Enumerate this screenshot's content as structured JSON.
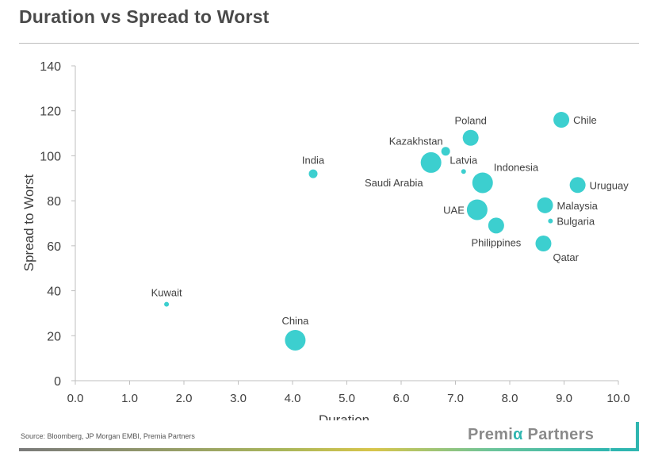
{
  "header": {
    "title": "Duration vs Spread to Worst"
  },
  "footer": {
    "source": "Source: Bloomberg, JP Morgan EMBI, Premia Partners",
    "brand_prefix": "Premi",
    "brand_alpha": "α",
    "brand_suffix": " Partners"
  },
  "colors": {
    "bubble": "#3ccfcf",
    "axis": "#bfbfbf",
    "text": "#404040",
    "brand_teal": "#2fb6b0"
  },
  "chart_data": {
    "type": "scatter",
    "title": "Duration vs Spread to Worst",
    "xlabel": "Duration",
    "ylabel": "Spread to Worst",
    "xlim": [
      0,
      10
    ],
    "ylim": [
      0,
      140
    ],
    "xticks": [
      "0.0",
      "1.0",
      "2.0",
      "3.0",
      "4.0",
      "5.0",
      "6.0",
      "7.0",
      "8.0",
      "9.0",
      "10.0"
    ],
    "yticks": [
      "0",
      "20",
      "40",
      "60",
      "80",
      "100",
      "120",
      "140"
    ],
    "grid": false,
    "points": [
      {
        "label": "Chile",
        "x": 8.95,
        "y": 116,
        "size": "medium",
        "label_pos": "right"
      },
      {
        "label": "Poland",
        "x": 7.28,
        "y": 108,
        "size": "medium",
        "label_pos": "top"
      },
      {
        "label": "Kazakhstan",
        "x": 6.82,
        "y": 102,
        "size": "small",
        "label_pos": "top-left"
      },
      {
        "label": "Saudi Arabia",
        "x": 6.55,
        "y": 97,
        "size": "large",
        "label_pos": "bottom-left"
      },
      {
        "label": "India",
        "x": 4.38,
        "y": 92,
        "size": "small",
        "label_pos": "top"
      },
      {
        "label": "Latvia",
        "x": 7.15,
        "y": 93,
        "size": "tiny",
        "label_pos": "top"
      },
      {
        "label": "Indonesia",
        "x": 7.5,
        "y": 88,
        "size": "large",
        "label_pos": "top-right"
      },
      {
        "label": "Uruguay",
        "x": 9.25,
        "y": 87,
        "size": "medium",
        "label_pos": "right"
      },
      {
        "label": "Malaysia",
        "x": 8.65,
        "y": 78,
        "size": "medium",
        "label_pos": "right"
      },
      {
        "label": "UAE",
        "x": 7.4,
        "y": 76,
        "size": "large",
        "label_pos": "left"
      },
      {
        "label": "Bulgaria",
        "x": 8.75,
        "y": 71,
        "size": "tiny",
        "label_pos": "right"
      },
      {
        "label": "Philippines",
        "x": 7.75,
        "y": 69,
        "size": "medium",
        "label_pos": "bottom"
      },
      {
        "label": "Qatar",
        "x": 8.62,
        "y": 61,
        "size": "medium",
        "label_pos": "bottom-right"
      },
      {
        "label": "Kuwait",
        "x": 1.68,
        "y": 34,
        "size": "tiny",
        "label_pos": "top"
      },
      {
        "label": "China",
        "x": 4.05,
        "y": 18,
        "size": "large",
        "label_pos": "top"
      }
    ]
  }
}
